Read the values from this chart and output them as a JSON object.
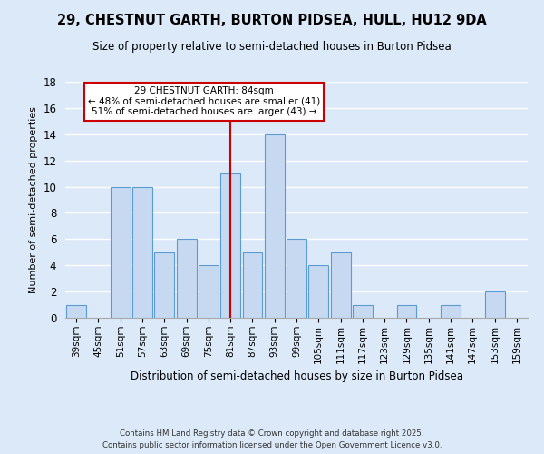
{
  "title": "29, CHESTNUT GARTH, BURTON PIDSEA, HULL, HU12 9DA",
  "subtitle": "Size of property relative to semi-detached houses in Burton Pidsea",
  "xlabel": "Distribution of semi-detached houses by size in Burton Pidsea",
  "ylabel": "Number of semi-detached properties",
  "bin_starts": [
    39,
    45,
    51,
    57,
    63,
    69,
    75,
    81,
    87,
    93,
    99,
    105,
    111,
    117,
    123,
    129,
    135,
    141,
    147,
    153,
    159
  ],
  "counts": [
    1,
    0,
    10,
    10,
    5,
    6,
    4,
    11,
    5,
    14,
    6,
    4,
    5,
    1,
    0,
    1,
    0,
    1,
    0,
    2,
    0
  ],
  "bin_width": 6,
  "bar_color": "#c6d9f1",
  "bar_edge_color": "#5b9bd5",
  "vline_x": 84,
  "vline_color": "#cc0000",
  "annotation_title": "29 CHESTNUT GARTH: 84sqm",
  "annotation_line1": "← 48% of semi-detached houses are smaller (41)",
  "annotation_line2": "51% of semi-detached houses are larger (43) →",
  "ylim": [
    0,
    18
  ],
  "yticks": [
    0,
    2,
    4,
    6,
    8,
    10,
    12,
    14,
    16,
    18
  ],
  "background_color": "#dce9f8",
  "grid_color": "#ffffff",
  "footer1": "Contains HM Land Registry data © Crown copyright and database right 2025.",
  "footer2": "Contains public sector information licensed under the Open Government Licence v3.0."
}
